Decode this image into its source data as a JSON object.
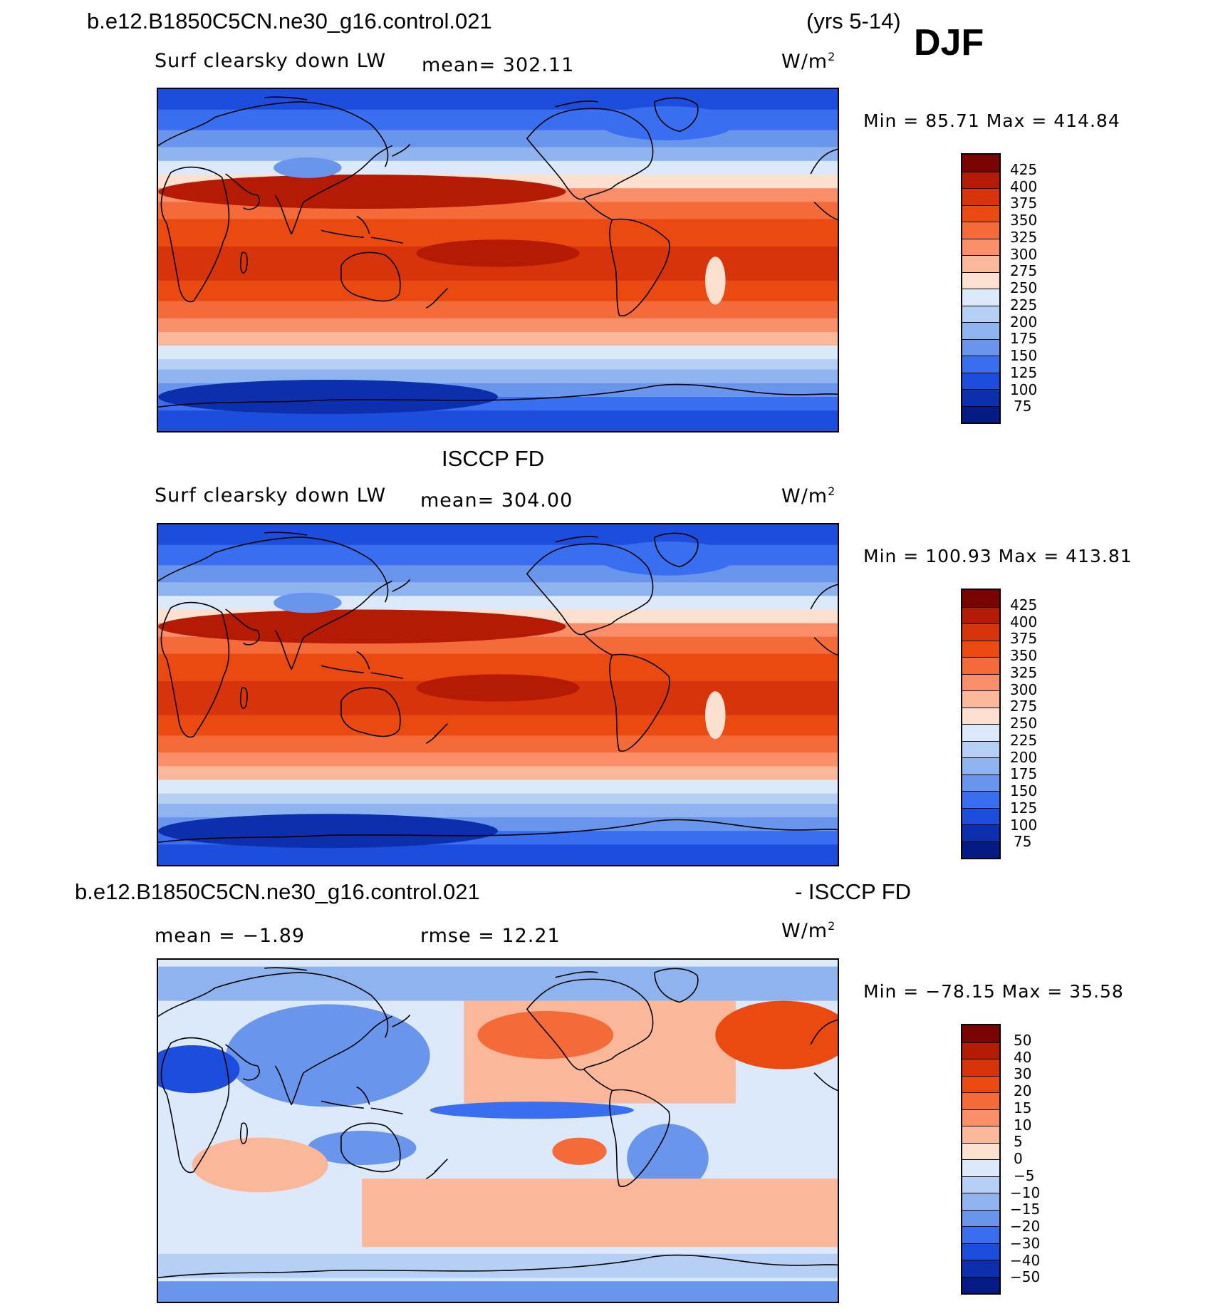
{
  "header": {
    "case_name": "b.e12.B1850C5CN.ne30_g16.control.021",
    "years": "(yrs 5-14)",
    "season": "DJF"
  },
  "panels": [
    {
      "id": "model",
      "variable": "Surf clearsky down LW",
      "mean_label": "mean= 302.11",
      "units": "W/m",
      "units_sup": "2",
      "minmax": "Min =  85.71 Max = 414.84",
      "levels": [
        "425",
        "400",
        "375",
        "350",
        "325",
        "300",
        "275",
        "250",
        "225",
        "200",
        "175",
        "150",
        "125",
        "100",
        "75"
      ],
      "colors": [
        "#7a0403",
        "#b51a05",
        "#d8340b",
        "#ea4a10",
        "#f46a38",
        "#f98e68",
        "#fbb79a",
        "#fce0cf",
        "#dbe9fa",
        "#b6d0f5",
        "#8fb3ee",
        "#6a95ec",
        "#3a6ef0",
        "#1d4ddd",
        "#0c2fad",
        "#061a85"
      ]
    },
    {
      "id": "obs",
      "title": "ISCCP FD",
      "variable": "Surf clearsky down LW",
      "mean_label": "mean= 304.00",
      "units": "W/m",
      "units_sup": "2",
      "minmax": "Min = 100.93 Max = 413.81",
      "levels": [
        "425",
        "400",
        "375",
        "350",
        "325",
        "300",
        "275",
        "250",
        "225",
        "200",
        "175",
        "150",
        "125",
        "100",
        "75"
      ],
      "colors": [
        "#7a0403",
        "#b51a05",
        "#d8340b",
        "#ea4a10",
        "#f46a38",
        "#f98e68",
        "#fbb79a",
        "#fce0cf",
        "#dbe9fa",
        "#b6d0f5",
        "#8fb3ee",
        "#6a95ec",
        "#3a6ef0",
        "#1d4ddd",
        "#0c2fad",
        "#061a85"
      ]
    },
    {
      "id": "diff",
      "title_left": "b.e12.B1850C5CN.ne30_g16.control.021",
      "title_right": "- ISCCP FD",
      "mean_label": "mean =  −1.89",
      "rmse_label": "rmse =  12.21",
      "units": "W/m",
      "units_sup": "2",
      "minmax": "Min = −78.15 Max =  35.58",
      "levels": [
        "50",
        "40",
        "30",
        "20",
        "15",
        "10",
        "5",
        "0",
        "−5",
        "−10",
        "−15",
        "−20",
        "−30",
        "−40",
        "−50"
      ],
      "colors": [
        "#7a0403",
        "#b51a05",
        "#d8340b",
        "#ea4a10",
        "#f46a38",
        "#f98e68",
        "#fbb79a",
        "#fce0cf",
        "#dbe9fa",
        "#b6d0f5",
        "#8fb3ee",
        "#6a95ec",
        "#3a6ef0",
        "#1d4ddd",
        "#0c2fad",
        "#061a85"
      ]
    }
  ]
}
